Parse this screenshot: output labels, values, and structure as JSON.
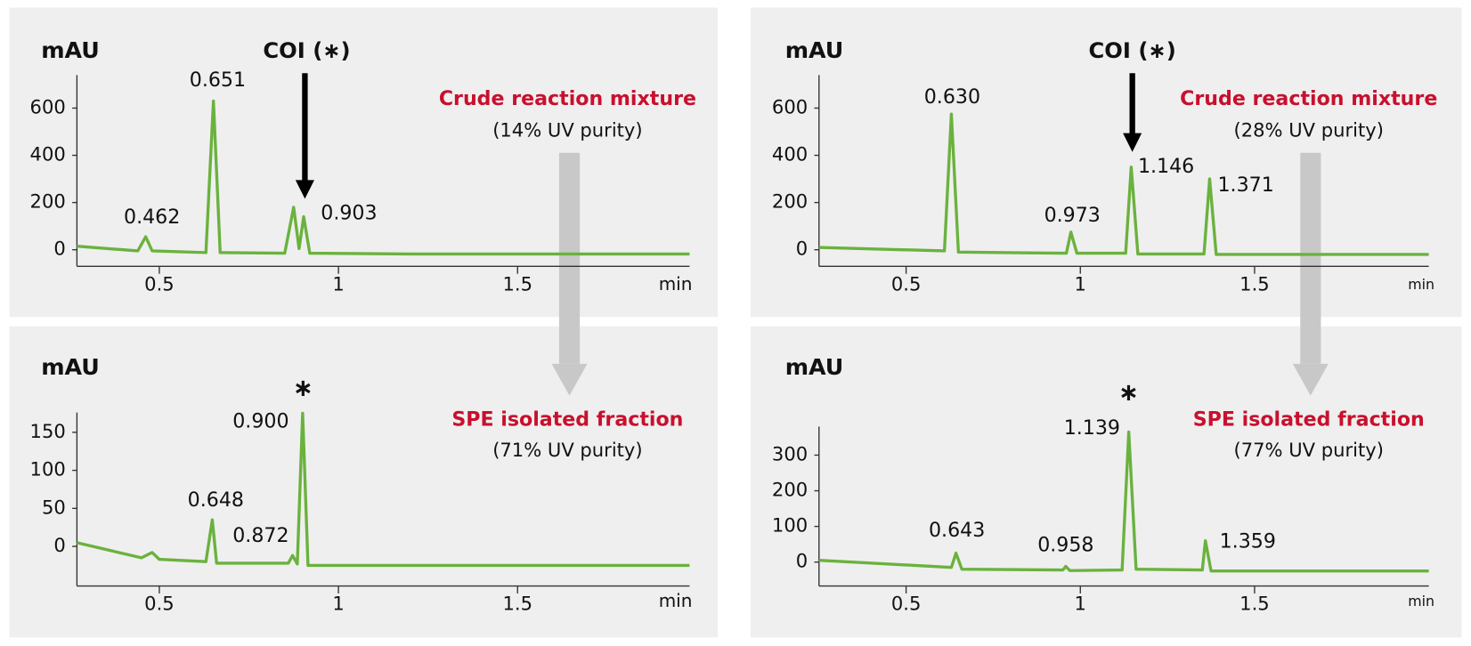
{
  "chart_data": [
    {
      "type": "line",
      "y_label": "mAU",
      "x_label": "min",
      "title": "Crude reaction mixture",
      "subtitle": "(14% UV purity)",
      "coi_label": "COI (∗)",
      "peak_labels": [
        "0.462",
        "0.651",
        "0.903"
      ],
      "x": [
        0.27,
        0.44,
        0.462,
        0.48,
        0.63,
        0.651,
        0.67,
        0.85,
        0.875,
        0.89,
        0.903,
        0.92,
        1.2,
        1.98
      ],
      "values": [
        15,
        -5,
        55,
        -5,
        -12,
        630,
        -12,
        -15,
        180,
        5,
        140,
        -15,
        -18,
        -18
      ],
      "color": "#6ab23e",
      "title_color": "#c8102e",
      "xlim": [
        0.27,
        1.98
      ],
      "xticks": [
        0.5,
        1,
        1.5
      ],
      "ylim": [
        -70,
        740
      ],
      "yticks": [
        0,
        200,
        400,
        600
      ]
    },
    {
      "type": "line",
      "y_label": "mAU",
      "x_label": "min",
      "title": "SPE isolated fraction",
      "subtitle": "(71% UV purity)",
      "coi_label": "∗",
      "peak_labels": [
        "0.648",
        "0.872",
        "0.900"
      ],
      "x": [
        0.27,
        0.45,
        0.48,
        0.5,
        0.63,
        0.648,
        0.66,
        0.86,
        0.872,
        0.885,
        0.9,
        0.915,
        1.98
      ],
      "values": [
        5,
        -15,
        -8,
        -17,
        -20,
        35,
        -22,
        -22,
        -12,
        -23,
        175,
        -25,
        -25
      ],
      "color": "#6ab23e",
      "title_color": "#c8102e",
      "xlim": [
        0.27,
        1.98
      ],
      "xticks": [
        0.5,
        1,
        1.5
      ],
      "ylim": [
        -52,
        176
      ],
      "yticks": [
        0,
        50,
        100,
        150
      ]
    },
    {
      "type": "line",
      "y_label": "mAU",
      "x_label": "min",
      "title": "Crude reaction mixture",
      "subtitle": "(28% UV purity)",
      "coi_label": "COI (∗)",
      "peak_labels": [
        "0.630",
        "0.973",
        "1.146",
        "1.371"
      ],
      "x": [
        0.25,
        0.61,
        0.63,
        0.65,
        0.96,
        0.973,
        0.99,
        1.13,
        1.146,
        1.165,
        1.355,
        1.371,
        1.39,
        2.0
      ],
      "values": [
        10,
        -5,
        575,
        -10,
        -15,
        75,
        -15,
        -15,
        350,
        -18,
        -18,
        300,
        -20,
        -20
      ],
      "color": "#6ab23e",
      "title_color": "#c8102e",
      "xlim": [
        0.25,
        2.0
      ],
      "xticks": [
        0.5,
        1,
        1.5
      ],
      "ylim": [
        -70,
        740
      ],
      "yticks": [
        0,
        200,
        400,
        600
      ]
    },
    {
      "type": "line",
      "y_label": "mAU",
      "x_label": "min",
      "title": "SPE isolated fraction",
      "subtitle": "(77% UV purity)",
      "coi_label": "∗",
      "peak_labels": [
        "0.643",
        "0.958",
        "1.139",
        "1.359"
      ],
      "x": [
        0.25,
        0.63,
        0.643,
        0.66,
        0.95,
        0.958,
        0.97,
        1.12,
        1.139,
        1.16,
        1.35,
        1.359,
        1.375,
        2.0
      ],
      "values": [
        5,
        -15,
        25,
        -20,
        -22,
        -12,
        -24,
        -22,
        365,
        -20,
        -22,
        60,
        -25,
        -25
      ],
      "color": "#6ab23e",
      "title_color": "#c8102e",
      "xlim": [
        0.25,
        2.0
      ],
      "xticks": [
        0.5,
        1,
        1.5
      ],
      "ylim": [
        -67,
        380
      ],
      "yticks": [
        0,
        100,
        200,
        300
      ]
    }
  ]
}
